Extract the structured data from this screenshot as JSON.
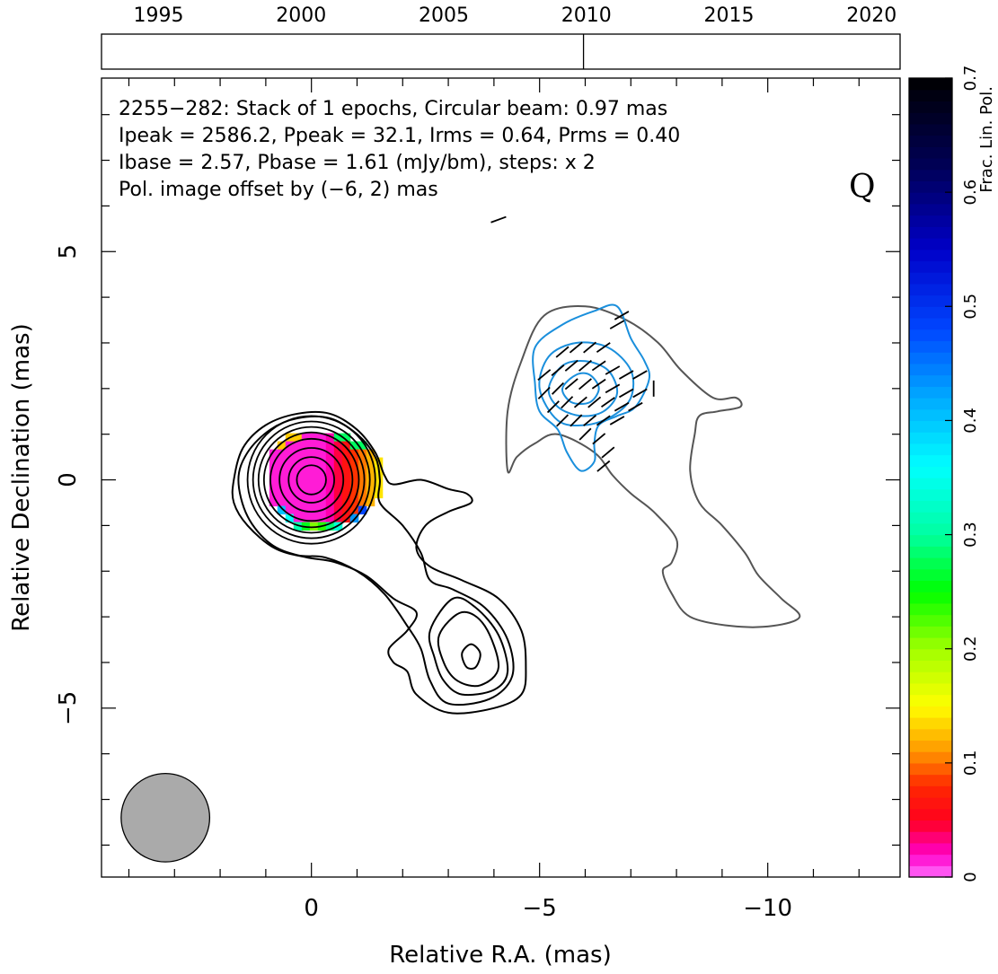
{
  "chart_data": {
    "type": "contour",
    "source": "2255−282",
    "annotation_lines": [
      "2255−282: Stack of 1 epochs, Circular beam: 0.97 mas",
      "Ipeak = 2586.2, Ppeak = 32.1, Irms = 0.64, Prms = 0.40",
      "Ibase = 2.57, Pbase = 1.61 (mJy/bm), steps: x 2"
    ],
    "offset_note": "Pol. image offset by (−6, 2) mas",
    "offset_color": "#1a8fdc",
    "quality_flag": "Q",
    "xlabel": "Relative R.A. (mas)",
    "ylabel": "Relative Declination (mas)",
    "xlim": [
      4.6,
      -12.9
    ],
    "ylim": [
      -8.7,
      8.8
    ],
    "x_ticks": [
      {
        "v": 0,
        "label": "0"
      },
      {
        "v": -5,
        "label": "−5"
      },
      {
        "v": -10,
        "label": "−10"
      }
    ],
    "y_ticks": [
      {
        "v": 5,
        "label": "5"
      },
      {
        "v": 0,
        "label": "0"
      },
      {
        "v": -5,
        "label": "−5"
      }
    ],
    "timeline": {
      "range": [
        1993.0,
        2021.0
      ],
      "ticks": [
        {
          "v": 1995,
          "label": "1995"
        },
        {
          "v": 2000,
          "label": "2000"
        },
        {
          "v": 2005,
          "label": "2005"
        },
        {
          "v": 2010,
          "label": "2010"
        },
        {
          "v": 2015,
          "label": "2015"
        },
        {
          "v": 2020,
          "label": "2020"
        }
      ],
      "epochs": [
        2009.9
      ]
    },
    "beam": {
      "diameter_mas": 0.97,
      "ra": 3.2,
      "dec": -7.4,
      "color": "#aaaaaa"
    },
    "colorbar": {
      "label": "Frac. Lin. Pol.",
      "range": [
        0,
        0.7
      ],
      "ticks": [
        {
          "v": 0,
          "label": "0"
        },
        {
          "v": 0.1,
          "label": "0.1"
        },
        {
          "v": 0.2,
          "label": "0.2"
        },
        {
          "v": 0.3,
          "label": "0.3"
        },
        {
          "v": 0.4,
          "label": "0.4"
        },
        {
          "v": 0.5,
          "label": "0.5"
        },
        {
          "v": 0.6,
          "label": "0.6"
        },
        {
          "v": 0.7,
          "label": "0.7"
        }
      ]
    },
    "pol_core": {
      "ra": 0.0,
      "dec": 0.1,
      "radius": 1.1
    },
    "stokes_i_contours": [
      {
        "points": [
          [
            1.7,
            0
          ],
          [
            1.5,
            0.7
          ],
          [
            1.0,
            1.2
          ],
          [
            0.3,
            1.45
          ],
          [
            -0.4,
            1.45
          ],
          [
            -1.0,
            1.1
          ],
          [
            -1.4,
            0.6
          ],
          [
            -1.6,
            0.1
          ],
          [
            -1.8,
            -0.1
          ],
          [
            -2.4,
            0.0
          ],
          [
            -3.0,
            -0.2
          ],
          [
            -3.4,
            -0.3
          ],
          [
            -3.5,
            -0.5
          ],
          [
            -3.0,
            -0.7
          ],
          [
            -2.5,
            -1.0
          ],
          [
            -2.3,
            -1.5
          ],
          [
            -2.6,
            -1.9
          ],
          [
            -3.3,
            -2.2
          ],
          [
            -4.1,
            -2.6
          ],
          [
            -4.6,
            -3.3
          ],
          [
            -4.7,
            -4.1
          ],
          [
            -4.6,
            -4.7
          ],
          [
            -4.0,
            -5.0
          ],
          [
            -3.0,
            -5.1
          ],
          [
            -2.3,
            -4.7
          ],
          [
            -2.1,
            -4.2
          ],
          [
            -1.8,
            -4.0
          ],
          [
            -1.7,
            -3.7
          ],
          [
            -2.1,
            -3.3
          ],
          [
            -2.3,
            -2.9
          ],
          [
            -1.8,
            -2.6
          ],
          [
            -1.2,
            -2.1
          ],
          [
            -0.5,
            -1.8
          ],
          [
            0.1,
            -1.7
          ],
          [
            0.8,
            -1.5
          ],
          [
            1.4,
            -1.0
          ],
          [
            1.7,
            -0.5
          ]
        ],
        "color": "#000000"
      },
      {
        "points": [
          [
            1.6,
            0
          ],
          [
            1.4,
            0.6
          ],
          [
            0.9,
            1.1
          ],
          [
            0.3,
            1.35
          ],
          [
            -0.4,
            1.35
          ],
          [
            -1.0,
            1.0
          ],
          [
            -1.4,
            0.5
          ],
          [
            -1.5,
            0.0
          ],
          [
            -1.5,
            -0.5
          ],
          [
            -2.0,
            -1.0
          ],
          [
            -2.4,
            -1.6
          ],
          [
            -2.6,
            -2.2
          ],
          [
            -3.1,
            -2.4
          ],
          [
            -3.8,
            -2.8
          ],
          [
            -4.3,
            -3.5
          ],
          [
            -4.4,
            -4.3
          ],
          [
            -3.9,
            -4.8
          ],
          [
            -3.0,
            -4.9
          ],
          [
            -2.6,
            -4.4
          ],
          [
            -2.4,
            -3.7
          ],
          [
            -2.1,
            -3.2
          ],
          [
            -1.6,
            -2.5
          ],
          [
            -1.0,
            -2.0
          ],
          [
            -0.3,
            -1.7
          ],
          [
            0.3,
            -1.65
          ],
          [
            0.9,
            -1.4
          ],
          [
            1.4,
            -0.8
          ]
        ],
        "color": "#000000"
      },
      {
        "points": [
          [
            -2.6,
            -3.3
          ],
          [
            -3.1,
            -2.6
          ],
          [
            -3.6,
            -2.8
          ],
          [
            -4.1,
            -3.4
          ],
          [
            -4.3,
            -4.2
          ],
          [
            -4.0,
            -4.6
          ],
          [
            -3.3,
            -4.7
          ],
          [
            -2.9,
            -4.4
          ],
          [
            -2.7,
            -3.9
          ]
        ],
        "color": "#000000"
      },
      {
        "points": [
          [
            -2.8,
            -3.4
          ],
          [
            -3.3,
            -2.9
          ],
          [
            -3.8,
            -3.2
          ],
          [
            -4.1,
            -4.1
          ],
          [
            -3.7,
            -4.5
          ],
          [
            -3.2,
            -4.4
          ],
          [
            -2.9,
            -4.0
          ]
        ],
        "color": "#000000"
      },
      {
        "points": [
          [
            -3.3,
            -3.8
          ],
          [
            -3.5,
            -3.6
          ],
          [
            -3.7,
            -3.8
          ],
          [
            -3.6,
            -4.1
          ],
          [
            -3.4,
            -4.1
          ]
        ],
        "color": "#000000"
      }
    ],
    "core_rings": [
      1.4,
      1.28,
      1.16,
      1.04,
      0.9,
      0.7,
      0.5,
      0.32
    ],
    "pol_contours": [
      {
        "points": [
          [
            -4.3,
            0.2
          ],
          [
            -4.3,
            1.5
          ],
          [
            -4.6,
            2.6
          ],
          [
            -5.1,
            3.6
          ],
          [
            -6.0,
            3.8
          ],
          [
            -6.9,
            3.5
          ],
          [
            -7.6,
            3.0
          ],
          [
            -8.1,
            2.4
          ],
          [
            -8.8,
            1.8
          ],
          [
            -9.3,
            1.8
          ],
          [
            -9.4,
            1.6
          ],
          [
            -8.9,
            1.5
          ],
          [
            -8.5,
            1.4
          ],
          [
            -8.4,
            1.0
          ],
          [
            -8.3,
            0.2
          ],
          [
            -8.5,
            -0.5
          ],
          [
            -9.0,
            -1.0
          ],
          [
            -9.5,
            -1.6
          ],
          [
            -9.8,
            -2.1
          ],
          [
            -10.3,
            -2.6
          ],
          [
            -10.7,
            -3.0
          ],
          [
            -10.1,
            -3.2
          ],
          [
            -9.2,
            -3.2
          ],
          [
            -8.3,
            -3.0
          ],
          [
            -7.9,
            -2.5
          ],
          [
            -7.7,
            -2.0
          ],
          [
            -7.9,
            -1.8
          ],
          [
            -8.0,
            -1.3
          ],
          [
            -7.5,
            -0.7
          ],
          [
            -7.0,
            -0.3
          ],
          [
            -6.6,
            0.1
          ],
          [
            -6.2,
            0.6
          ],
          [
            -5.4,
            1.0
          ],
          [
            -4.9,
            0.8
          ],
          [
            -4.5,
            0.5
          ]
        ],
        "color": "#555555"
      },
      {
        "points": [
          [
            -4.9,
            2.1
          ],
          [
            -4.9,
            2.9
          ],
          [
            -5.5,
            3.4
          ],
          [
            -6.2,
            3.7
          ],
          [
            -6.7,
            3.8
          ],
          [
            -7.0,
            3.1
          ],
          [
            -7.3,
            2.6
          ],
          [
            -7.4,
            2.2
          ],
          [
            -7.1,
            1.6
          ],
          [
            -6.7,
            1.4
          ],
          [
            -6.3,
            1.2
          ],
          [
            -6.2,
            0.8
          ],
          [
            -6.2,
            0.4
          ],
          [
            -5.9,
            0.2
          ],
          [
            -5.6,
            0.6
          ],
          [
            -5.4,
            1.1
          ],
          [
            -5.0,
            1.5
          ]
        ],
        "color": "#1a8fdc"
      },
      {
        "points": [
          [
            -5.0,
            2.0
          ],
          [
            -5.2,
            2.7
          ],
          [
            -5.8,
            3.0
          ],
          [
            -6.5,
            2.9
          ],
          [
            -7.0,
            2.4
          ],
          [
            -7.0,
            1.8
          ],
          [
            -6.6,
            1.4
          ],
          [
            -6.0,
            1.2
          ],
          [
            -5.4,
            1.3
          ]
        ],
        "color": "#1a8fdc"
      },
      {
        "points": [
          [
            -5.2,
            2.0
          ],
          [
            -5.5,
            2.5
          ],
          [
            -6.0,
            2.6
          ],
          [
            -6.5,
            2.4
          ],
          [
            -6.7,
            1.9
          ],
          [
            -6.4,
            1.5
          ],
          [
            -5.9,
            1.4
          ],
          [
            -5.4,
            1.6
          ]
        ],
        "color": "#1a8fdc"
      },
      {
        "points": [
          [
            -5.5,
            2.0
          ],
          [
            -5.8,
            2.3
          ],
          [
            -6.1,
            2.3
          ],
          [
            -6.3,
            2.0
          ],
          [
            -6.1,
            1.7
          ],
          [
            -5.7,
            1.7
          ]
        ],
        "color": "#1a8fdc"
      }
    ],
    "evpa_vectors": [
      [
        -5.5,
        2.8,
        40
      ],
      [
        -5.8,
        2.9,
        40
      ],
      [
        -6.1,
        2.9,
        40
      ],
      [
        -6.4,
        2.9,
        35
      ],
      [
        -6.7,
        3.4,
        30
      ],
      [
        -6.8,
        3.6,
        30
      ],
      [
        -5.1,
        2.3,
        40
      ],
      [
        -5.4,
        2.4,
        40
      ],
      [
        -5.7,
        2.5,
        40
      ],
      [
        -6.0,
        2.5,
        40
      ],
      [
        -6.3,
        2.5,
        35
      ],
      [
        -6.6,
        2.4,
        30
      ],
      [
        -6.9,
        2.3,
        30
      ],
      [
        -7.2,
        2.3,
        30
      ],
      [
        -5.1,
        1.9,
        45
      ],
      [
        -5.4,
        2.0,
        45
      ],
      [
        -5.7,
        2.1,
        40
      ],
      [
        -6.0,
        2.1,
        40
      ],
      [
        -6.3,
        2.1,
        35
      ],
      [
        -6.6,
        2.0,
        30
      ],
      [
        -6.9,
        1.9,
        30
      ],
      [
        -7.2,
        1.9,
        30
      ],
      [
        -5.3,
        1.6,
        45
      ],
      [
        -5.6,
        1.7,
        45
      ],
      [
        -5.9,
        1.7,
        40
      ],
      [
        -6.2,
        1.7,
        40
      ],
      [
        -6.5,
        1.7,
        35
      ],
      [
        -6.8,
        1.6,
        30
      ],
      [
        -7.1,
        1.6,
        30
      ],
      [
        -5.5,
        1.3,
        45
      ],
      [
        -5.8,
        1.3,
        45
      ],
      [
        -6.1,
        1.3,
        40
      ],
      [
        -6.4,
        1.3,
        35
      ],
      [
        -6.7,
        1.3,
        30
      ],
      [
        -6.0,
        1.0,
        45
      ],
      [
        -6.3,
        0.9,
        40
      ],
      [
        -6.5,
        0.6,
        40
      ],
      [
        -6.4,
        0.3,
        40
      ],
      [
        -7.5,
        2.0,
        90
      ],
      [
        -4.1,
        5.7,
        20
      ]
    ]
  }
}
